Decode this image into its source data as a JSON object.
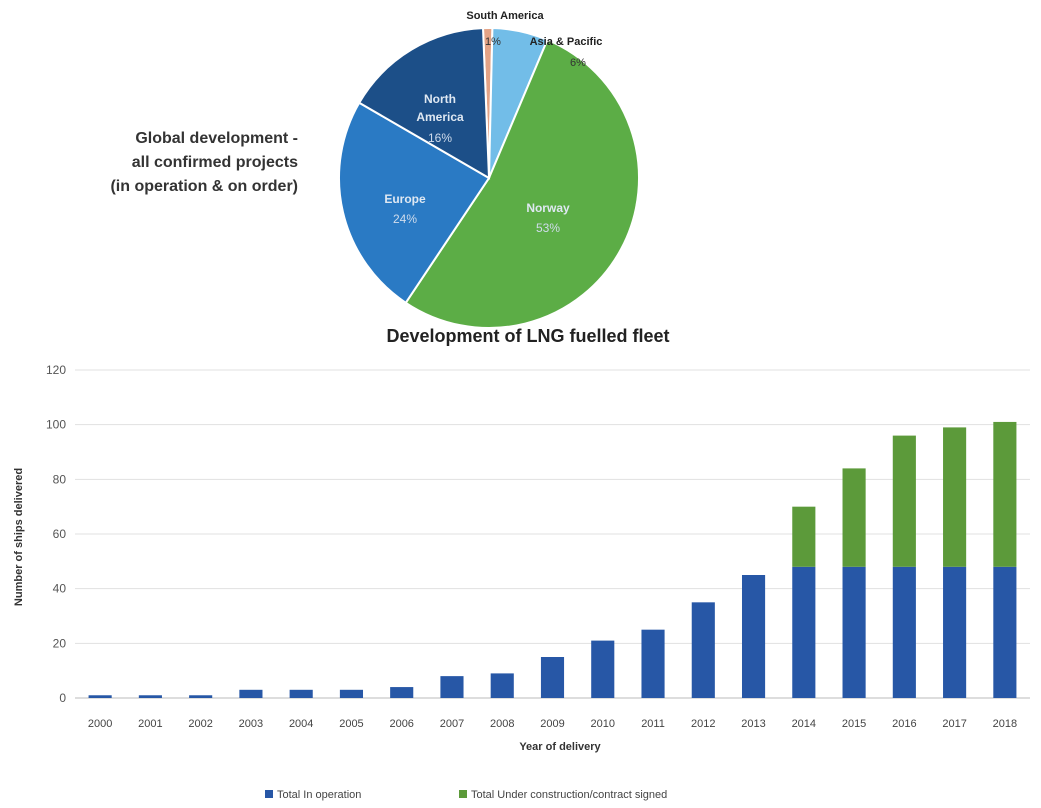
{
  "colors": {
    "norway": "#5cad46",
    "europe": "#2a7ac4",
    "north_america": "#1c4f88",
    "south_america": "#e3a386",
    "asia_pacific": "#72bde8",
    "in_operation": "#2757a6",
    "under_construction": "#5c9a3a"
  },
  "chart_data": [
    {
      "type": "pie",
      "title_lines": [
        "Global development -",
        "all confirmed projects",
        "(in operation & on order)"
      ],
      "slices": [
        {
          "label": "South America",
          "value": 1,
          "display": "1%",
          "color": "#e3a386"
        },
        {
          "label": "Asia & Pacific",
          "value": 6,
          "display": "6%",
          "color": "#72bde8"
        },
        {
          "label": "Norway",
          "value": 53,
          "display": "53%",
          "color": "#5cad46"
        },
        {
          "label": "Europe",
          "value": 24,
          "display": "24%",
          "color": "#2a7ac4"
        },
        {
          "label": "North America",
          "label_lines": [
            "North",
            "America"
          ],
          "value": 16,
          "display": "16%",
          "color": "#1c4f88"
        }
      ]
    },
    {
      "type": "bar",
      "stacked": true,
      "title": "Development of LNG fuelled fleet",
      "xlabel": "Year of delivery",
      "ylabel": "Number of ships delivered",
      "ylim": [
        0,
        120
      ],
      "yticks": [
        0,
        20,
        40,
        60,
        80,
        100,
        120
      ],
      "grid": true,
      "legend_position": "bottom",
      "categories": [
        "2000",
        "2001",
        "2002",
        "2003",
        "2004",
        "2005",
        "2006",
        "2007",
        "2008",
        "2009",
        "2010",
        "2011",
        "2012",
        "2013",
        "2014",
        "2015",
        "2016",
        "2017",
        "2018"
      ],
      "series": [
        {
          "name": "Total In operation",
          "color": "#2757a6",
          "values": [
            1,
            1,
            1,
            3,
            3,
            3,
            4,
            8,
            9,
            15,
            21,
            25,
            35,
            45,
            48,
            48,
            48,
            48,
            48
          ]
        },
        {
          "name": "Total Under construction/contract signed",
          "color": "#5c9a3a",
          "values": [
            0,
            0,
            0,
            0,
            0,
            0,
            0,
            0,
            0,
            0,
            0,
            0,
            0,
            0,
            22,
            36,
            48,
            51,
            53
          ]
        }
      ]
    }
  ]
}
